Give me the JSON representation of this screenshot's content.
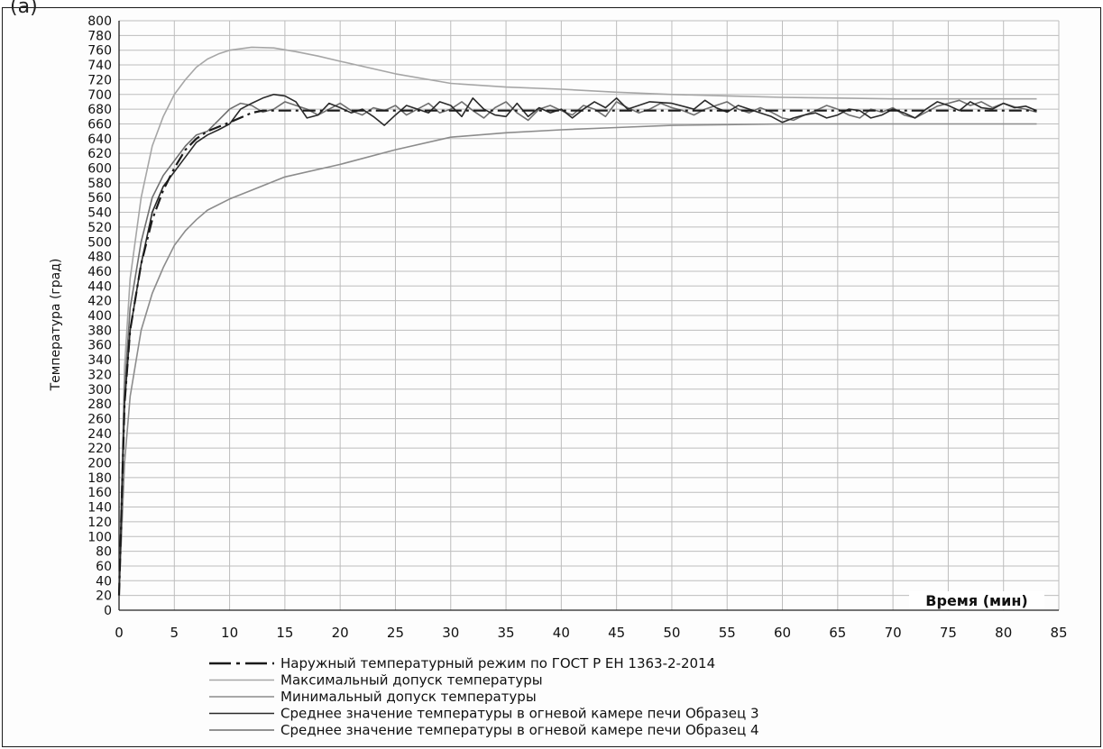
{
  "figure_label": "(a)",
  "colors": {
    "external": "#1a1a1a",
    "max": "#a6a6a6",
    "min": "#8c8c8c",
    "s3": "#2a2a2a",
    "s4": "#6f6f6f",
    "grid": "#bdbdbd"
  },
  "chart_data": {
    "type": "line",
    "title": "",
    "ylabel": "Температура (град)",
    "xlabel": "Время (мин)",
    "xlim": [
      0,
      85
    ],
    "ylim": [
      0,
      800
    ],
    "x_ticks": [
      0,
      5,
      10,
      15,
      20,
      25,
      30,
      35,
      40,
      45,
      50,
      55,
      60,
      65,
      70,
      75,
      80,
      85
    ],
    "y_ticks": [
      0,
      20,
      40,
      60,
      80,
      100,
      120,
      140,
      160,
      180,
      200,
      220,
      240,
      260,
      280,
      300,
      320,
      340,
      360,
      380,
      400,
      420,
      440,
      460,
      480,
      500,
      520,
      540,
      560,
      580,
      600,
      620,
      640,
      660,
      680,
      700,
      720,
      740,
      760,
      780,
      800
    ],
    "grid": true,
    "legend_position": "bottom",
    "series": [
      {
        "name": "Наружный температурный режим по ГОСТ Р ЕН 1363-2-2014",
        "style": "dash-dot",
        "color_key": "external",
        "points": [
          [
            0,
            20
          ],
          [
            0.5,
            280
          ],
          [
            1,
            380
          ],
          [
            2,
            470
          ],
          [
            3,
            530
          ],
          [
            4,
            570
          ],
          [
            5,
            600
          ],
          [
            6,
            625
          ],
          [
            7,
            640
          ],
          [
            8,
            650
          ],
          [
            10,
            662
          ],
          [
            12,
            675
          ],
          [
            13,
            678
          ],
          [
            20,
            678
          ],
          [
            40,
            678
          ],
          [
            60,
            678
          ],
          [
            83,
            678
          ]
        ]
      },
      {
        "name": "Максимальный допуск температуры",
        "style": "solid",
        "color_key": "max",
        "points": [
          [
            0,
            20
          ],
          [
            0.5,
            330
          ],
          [
            1,
            450
          ],
          [
            2,
            560
          ],
          [
            3,
            630
          ],
          [
            4,
            670
          ],
          [
            5,
            700
          ],
          [
            6,
            720
          ],
          [
            7,
            737
          ],
          [
            8,
            748
          ],
          [
            9,
            755
          ],
          [
            10,
            760
          ],
          [
            12,
            764
          ],
          [
            14,
            763
          ],
          [
            16,
            758
          ],
          [
            18,
            752
          ],
          [
            20,
            745
          ],
          [
            25,
            728
          ],
          [
            30,
            715
          ],
          [
            35,
            710
          ],
          [
            40,
            707
          ],
          [
            45,
            703
          ],
          [
            50,
            700
          ],
          [
            55,
            698
          ],
          [
            60,
            696
          ],
          [
            65,
            695
          ],
          [
            70,
            694
          ],
          [
            75,
            694
          ],
          [
            83,
            694
          ]
        ]
      },
      {
        "name": "Минимальный допуск температуры",
        "style": "solid",
        "color_key": "min",
        "points": [
          [
            0,
            20
          ],
          [
            0.5,
            200
          ],
          [
            1,
            290
          ],
          [
            2,
            380
          ],
          [
            3,
            430
          ],
          [
            4,
            465
          ],
          [
            5,
            495
          ],
          [
            6,
            515
          ],
          [
            7,
            530
          ],
          [
            8,
            543
          ],
          [
            10,
            558
          ],
          [
            12,
            570
          ],
          [
            15,
            588
          ],
          [
            20,
            605
          ],
          [
            25,
            625
          ],
          [
            30,
            642
          ],
          [
            35,
            648
          ],
          [
            40,
            652
          ],
          [
            45,
            655
          ],
          [
            50,
            658
          ],
          [
            55,
            659
          ],
          [
            60,
            660
          ],
          [
            70,
            660
          ],
          [
            83,
            660
          ]
        ]
      },
      {
        "name": "Среднее значение температуры в огневой камере печи Образец 3",
        "style": "solid",
        "color_key": "s3",
        "points": [
          [
            0,
            20
          ],
          [
            0.5,
            280
          ],
          [
            1,
            380
          ],
          [
            2,
            470
          ],
          [
            3,
            540
          ],
          [
            4,
            575
          ],
          [
            5,
            595
          ],
          [
            6,
            615
          ],
          [
            7,
            635
          ],
          [
            8,
            645
          ],
          [
            9,
            652
          ],
          [
            10,
            660
          ],
          [
            11,
            680
          ],
          [
            12,
            688
          ],
          [
            13,
            695
          ],
          [
            14,
            700
          ],
          [
            15,
            698
          ],
          [
            16,
            690
          ],
          [
            17,
            668
          ],
          [
            18,
            672
          ],
          [
            19,
            688
          ],
          [
            20,
            682
          ],
          [
            21,
            675
          ],
          [
            22,
            680
          ],
          [
            23,
            670
          ],
          [
            24,
            658
          ],
          [
            25,
            672
          ],
          [
            26,
            685
          ],
          [
            27,
            680
          ],
          [
            28,
            675
          ],
          [
            29,
            690
          ],
          [
            30,
            685
          ],
          [
            31,
            670
          ],
          [
            32,
            695
          ],
          [
            33,
            680
          ],
          [
            34,
            672
          ],
          [
            35,
            670
          ],
          [
            36,
            688
          ],
          [
            37,
            670
          ],
          [
            38,
            682
          ],
          [
            39,
            675
          ],
          [
            40,
            680
          ],
          [
            41,
            668
          ],
          [
            42,
            680
          ],
          [
            43,
            690
          ],
          [
            44,
            682
          ],
          [
            45,
            695
          ],
          [
            46,
            680
          ],
          [
            47,
            685
          ],
          [
            48,
            690
          ],
          [
            50,
            688
          ],
          [
            52,
            680
          ],
          [
            53,
            692
          ],
          [
            54,
            682
          ],
          [
            55,
            676
          ],
          [
            56,
            685
          ],
          [
            57,
            680
          ],
          [
            58,
            675
          ],
          [
            59,
            670
          ],
          [
            60,
            662
          ],
          [
            61,
            668
          ],
          [
            62,
            672
          ],
          [
            63,
            675
          ],
          [
            64,
            668
          ],
          [
            65,
            672
          ],
          [
            66,
            680
          ],
          [
            67,
            678
          ],
          [
            68,
            668
          ],
          [
            69,
            672
          ],
          [
            70,
            680
          ],
          [
            71,
            675
          ],
          [
            72,
            668
          ],
          [
            73,
            680
          ],
          [
            74,
            690
          ],
          [
            75,
            685
          ],
          [
            76,
            678
          ],
          [
            77,
            690
          ],
          [
            78,
            682
          ],
          [
            79,
            680
          ],
          [
            80,
            688
          ],
          [
            81,
            682
          ],
          [
            82,
            684
          ],
          [
            83,
            678
          ]
        ]
      },
      {
        "name": "Среднее значение температуры в огневой камере печи Образец 4",
        "style": "solid",
        "color_key": "s4",
        "points": [
          [
            0,
            20
          ],
          [
            0.5,
            300
          ],
          [
            1,
            410
          ],
          [
            2,
            500
          ],
          [
            3,
            560
          ],
          [
            4,
            590
          ],
          [
            5,
            610
          ],
          [
            6,
            630
          ],
          [
            7,
            645
          ],
          [
            8,
            650
          ],
          [
            9,
            665
          ],
          [
            10,
            680
          ],
          [
            11,
            688
          ],
          [
            12,
            685
          ],
          [
            13,
            676
          ],
          [
            14,
            680
          ],
          [
            15,
            690
          ],
          [
            16,
            685
          ],
          [
            17,
            680
          ],
          [
            18,
            672
          ],
          [
            19,
            680
          ],
          [
            20,
            688
          ],
          [
            21,
            678
          ],
          [
            22,
            672
          ],
          [
            23,
            682
          ],
          [
            24,
            678
          ],
          [
            25,
            685
          ],
          [
            26,
            672
          ],
          [
            27,
            680
          ],
          [
            28,
            688
          ],
          [
            29,
            675
          ],
          [
            30,
            680
          ],
          [
            31,
            690
          ],
          [
            32,
            678
          ],
          [
            33,
            668
          ],
          [
            34,
            682
          ],
          [
            35,
            690
          ],
          [
            36,
            675
          ],
          [
            37,
            665
          ],
          [
            38,
            680
          ],
          [
            39,
            685
          ],
          [
            40,
            678
          ],
          [
            41,
            672
          ],
          [
            42,
            685
          ],
          [
            43,
            680
          ],
          [
            44,
            670
          ],
          [
            45,
            690
          ],
          [
            46,
            682
          ],
          [
            47,
            675
          ],
          [
            48,
            680
          ],
          [
            49,
            688
          ],
          [
            50,
            682
          ],
          [
            51,
            678
          ],
          [
            52,
            672
          ],
          [
            53,
            680
          ],
          [
            54,
            685
          ],
          [
            55,
            690
          ],
          [
            56,
            680
          ],
          [
            57,
            675
          ],
          [
            58,
            682
          ],
          [
            59,
            676
          ],
          [
            60,
            668
          ],
          [
            61,
            665
          ],
          [
            62,
            672
          ],
          [
            63,
            678
          ],
          [
            64,
            685
          ],
          [
            65,
            680
          ],
          [
            66,
            672
          ],
          [
            67,
            668
          ],
          [
            68,
            680
          ],
          [
            69,
            676
          ],
          [
            70,
            682
          ],
          [
            71,
            672
          ],
          [
            72,
            668
          ],
          [
            73,
            676
          ],
          [
            74,
            684
          ],
          [
            75,
            688
          ],
          [
            76,
            692
          ],
          [
            77,
            685
          ],
          [
            78,
            690
          ],
          [
            79,
            682
          ],
          [
            80,
            688
          ],
          [
            81,
            683
          ],
          [
            82,
            680
          ],
          [
            83,
            676
          ]
        ]
      }
    ]
  }
}
